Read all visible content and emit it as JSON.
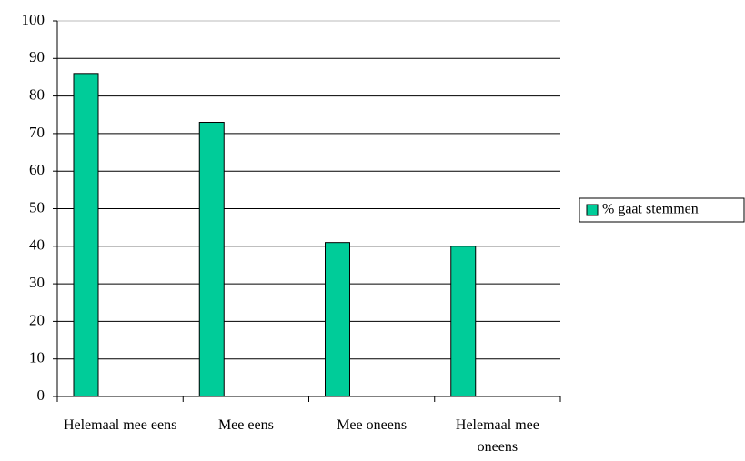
{
  "chart_data": {
    "type": "bar",
    "categories": [
      "Helemaal mee eens",
      "Mee eens",
      "Mee oneens",
      "Helemaal mee oneens"
    ],
    "series": [
      {
        "name": "% gaat stemmen",
        "color": "#00cc99",
        "values": [
          86,
          73,
          41,
          40
        ]
      }
    ],
    "ylim": [
      0,
      100
    ],
    "yticks": [
      0,
      10,
      20,
      30,
      40,
      50,
      60,
      70,
      80,
      90,
      100
    ],
    "grid": true,
    "legend": "right"
  }
}
